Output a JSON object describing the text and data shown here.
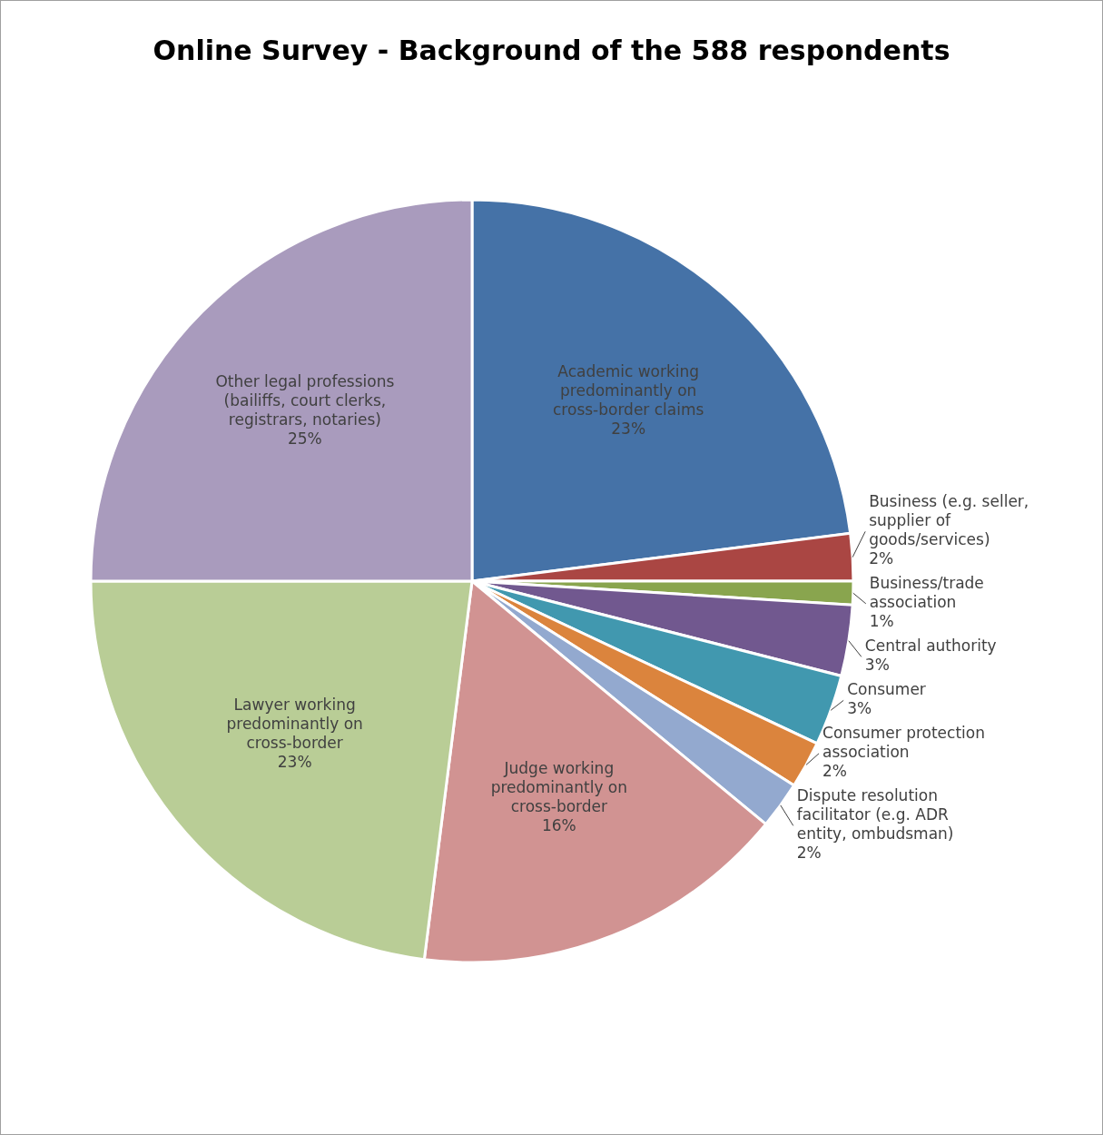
{
  "chart_data": {
    "type": "pie",
    "title": "Online Survey - Background of the 588 respondents",
    "categories": [
      "Academic working predominantly on cross-border claims",
      "Business (e.g. seller, supplier of goods/services)",
      "Business/trade association",
      "Central authority",
      "Consumer",
      "Consumer protection association",
      "Dispute resolution facilitator (e.g. ADR entity, ombudsman)",
      "Judge working predominantly on cross-border",
      "Lawyer working predominantly on cross-border",
      "Other legal professions (bailiffs, court clerks, registrars, notaries)"
    ],
    "values": [
      23,
      2,
      1,
      3,
      3,
      2,
      2,
      16,
      23,
      25
    ],
    "value_labels": [
      "23%",
      "2%",
      "1%",
      "3%",
      "3%",
      "2%",
      "2%",
      "16%",
      "23%",
      "25%"
    ],
    "colors": [
      "#4572a7",
      "#aa4643",
      "#89a54e",
      "#71588f",
      "#4198af",
      "#db843d",
      "#93a9cf",
      "#d19392",
      "#b9cd96",
      "#a99bbd"
    ]
  }
}
